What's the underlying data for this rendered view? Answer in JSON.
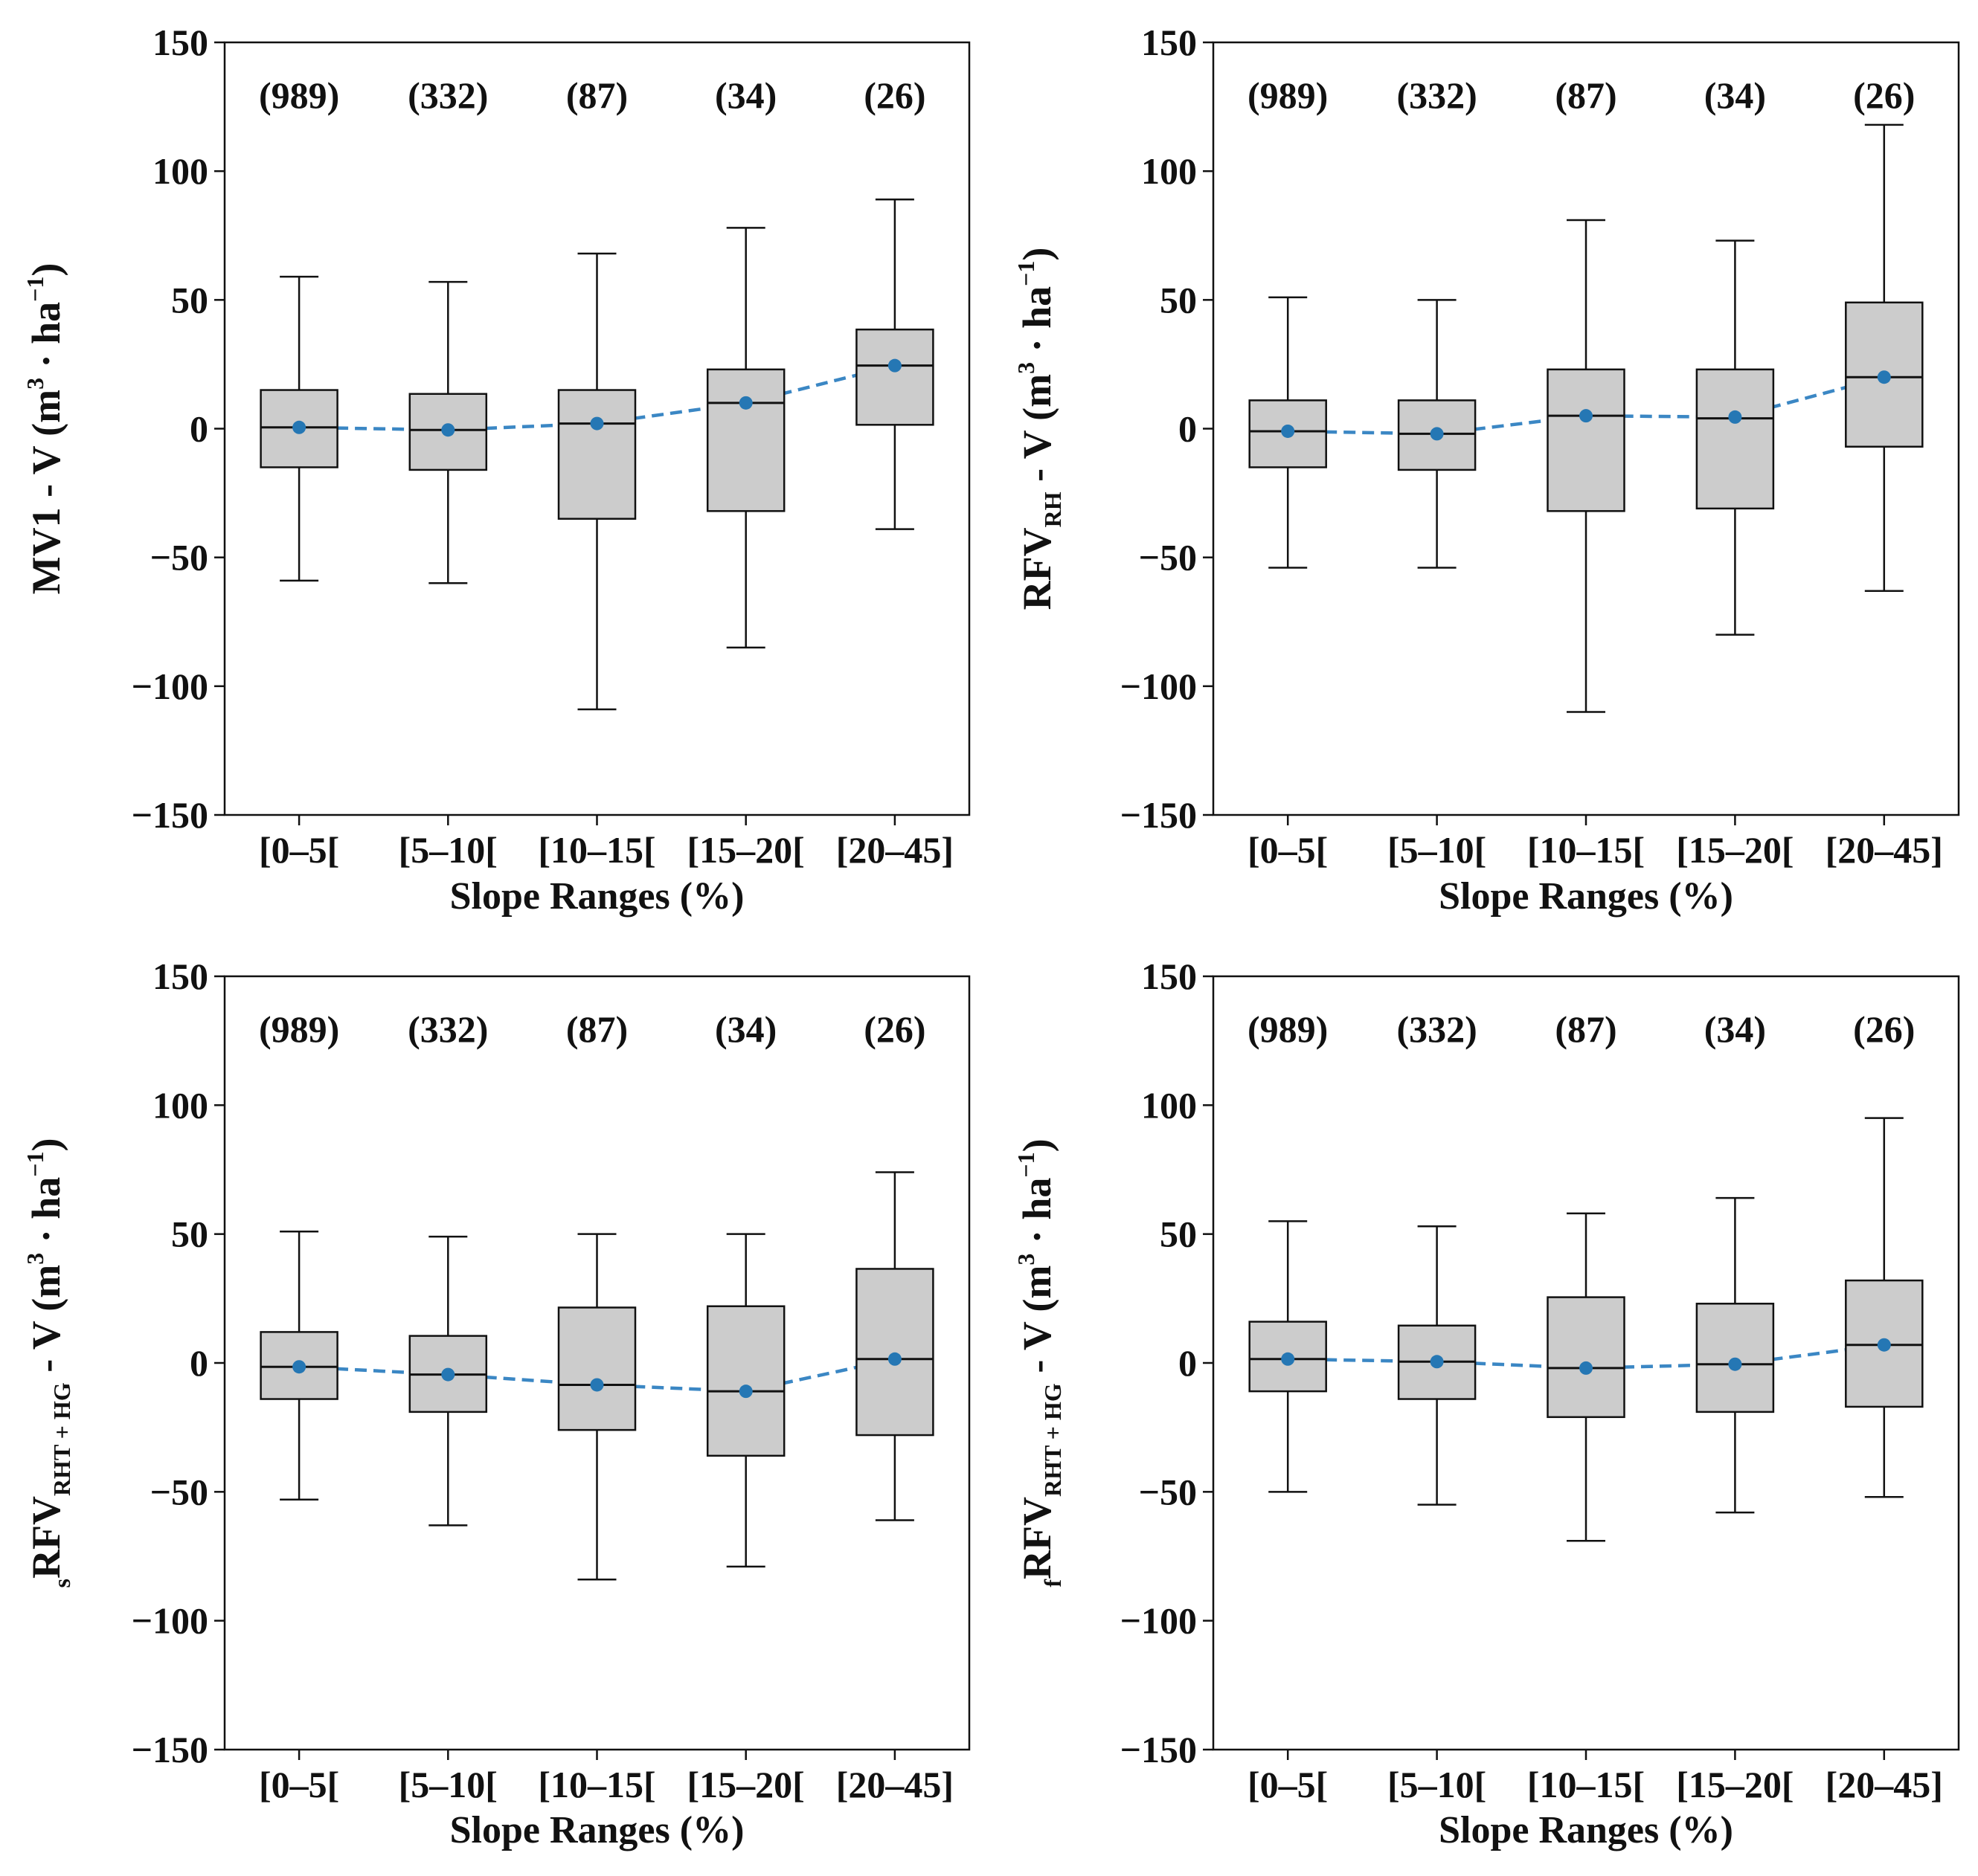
{
  "chart_data": [
    {
      "type": "box",
      "ylabel": {
        "pre": "",
        "main": "MV1",
        "sub": "",
        "mid": " - V (m",
        "sup1": "3",
        "mid2": " · ha",
        "sup2": "−1",
        "end": ")"
      },
      "xlabel": "Slope Ranges (%)",
      "categories": [
        "[0–5[",
        "[5–10[",
        "[10–15[",
        "[15–20[",
        "[20–45]"
      ],
      "counts": [
        "(989)",
        "(332)",
        "(87)",
        "(34)",
        "(26)"
      ],
      "ylim": [
        -150,
        150
      ],
      "yticks": [
        150,
        100,
        50,
        0,
        -50,
        -100,
        -150
      ],
      "ytick_labels": [
        "150",
        "100",
        "50",
        "0",
        "−50",
        "−100",
        "−150"
      ],
      "boxes": [
        {
          "whislo": -59,
          "q1": -15,
          "med": 0.5,
          "q3": 15,
          "whishi": 59,
          "mean": 0.5
        },
        {
          "whislo": -60,
          "q1": -16,
          "med": -0.5,
          "q3": 13.5,
          "whishi": 57,
          "mean": -0.5
        },
        {
          "whislo": -109,
          "q1": -35,
          "med": 2,
          "q3": 15,
          "whishi": 68,
          "mean": 2
        },
        {
          "whislo": -85,
          "q1": -32,
          "med": 10,
          "q3": 23,
          "whishi": 78,
          "mean": 10
        },
        {
          "whislo": -39,
          "q1": 1.5,
          "med": 24.5,
          "q3": 38.5,
          "whishi": 89,
          "mean": 24.5
        }
      ]
    },
    {
      "type": "box",
      "ylabel": {
        "pre": "",
        "main": "RFV",
        "sub": "RH",
        "mid": " - V (m",
        "sup1": "3",
        "mid2": " · ha",
        "sup2": "−1",
        "end": ")"
      },
      "xlabel": "Slope Ranges (%)",
      "categories": [
        "[0–5[",
        "[5–10[",
        "[10–15[",
        "[15–20[",
        "[20–45]"
      ],
      "counts": [
        "(989)",
        "(332)",
        "(87)",
        "(34)",
        "(26)"
      ],
      "ylim": [
        -150,
        150
      ],
      "yticks": [
        150,
        100,
        50,
        0,
        -50,
        -100,
        -150
      ],
      "ytick_labels": [
        "150",
        "100",
        "50",
        "0",
        "−50",
        "−100",
        "−150"
      ],
      "boxes": [
        {
          "whislo": -54,
          "q1": -15,
          "med": -1,
          "q3": 11,
          "whishi": 51,
          "mean": -1
        },
        {
          "whislo": -54,
          "q1": -16,
          "med": -2,
          "q3": 11,
          "whishi": 50,
          "mean": -2
        },
        {
          "whislo": -110,
          "q1": -32,
          "med": 5,
          "q3": 23,
          "whishi": 81,
          "mean": 5
        },
        {
          "whislo": -80,
          "q1": -31,
          "med": 4,
          "q3": 23,
          "whishi": 73,
          "mean": 4.5
        },
        {
          "whislo": -63,
          "q1": -7,
          "med": 20,
          "q3": 49,
          "whishi": 118,
          "mean": 20
        }
      ]
    },
    {
      "type": "box",
      "ylabel": {
        "pre": "s",
        "main": "RFV",
        "sub": "RHT + HG",
        "mid": " - V (m",
        "sup1": "3",
        "mid2": " · ha",
        "sup2": "−1",
        "end": ")"
      },
      "xlabel": "Slope Ranges (%)",
      "categories": [
        "[0–5[",
        "[5–10[",
        "[10–15[",
        "[15–20[",
        "[20–45]"
      ],
      "counts": [
        "(989)",
        "(332)",
        "(87)",
        "(34)",
        "(26)"
      ],
      "ylim": [
        -150,
        150
      ],
      "yticks": [
        150,
        100,
        50,
        0,
        -50,
        -100,
        -150
      ],
      "ytick_labels": [
        "150",
        "100",
        "50",
        "0",
        "−50",
        "−100",
        "−150"
      ],
      "boxes": [
        {
          "whislo": -53,
          "q1": -14,
          "med": -1.5,
          "q3": 12,
          "whishi": 51,
          "mean": -1.5
        },
        {
          "whislo": -63,
          "q1": -19,
          "med": -4.5,
          "q3": 10.5,
          "whishi": 49,
          "mean": -4.5
        },
        {
          "whislo": -84,
          "q1": -26,
          "med": -8.5,
          "q3": 21.5,
          "whishi": 50,
          "mean": -8.5
        },
        {
          "whislo": -79,
          "q1": -36,
          "med": -11,
          "q3": 22,
          "whishi": 50,
          "mean": -11
        },
        {
          "whislo": -61,
          "q1": -28,
          "med": 1.5,
          "q3": 36.5,
          "whishi": 74,
          "mean": 1.5
        }
      ]
    },
    {
      "type": "box",
      "ylabel": {
        "pre": "f",
        "main": "RFV",
        "sub": "RHT + HG",
        "mid": " - V (m",
        "sup1": "3",
        "mid2": " · ha",
        "sup2": "−1",
        "end": ")"
      },
      "xlabel": "Slope Ranges (%)",
      "categories": [
        "[0–5[",
        "[5–10[",
        "[10–15[",
        "[15–20[",
        "[20–45]"
      ],
      "counts": [
        "(989)",
        "(332)",
        "(87)",
        "(34)",
        "(26)"
      ],
      "ylim": [
        -150,
        150
      ],
      "yticks": [
        150,
        100,
        50,
        0,
        -50,
        -100,
        -150
      ],
      "ytick_labels": [
        "150",
        "100",
        "50",
        "0",
        "−50",
        "−100",
        "−150"
      ],
      "boxes": [
        {
          "whislo": -50,
          "q1": -11,
          "med": 1.5,
          "q3": 16,
          "whishi": 55,
          "mean": 1.5
        },
        {
          "whislo": -55,
          "q1": -14,
          "med": 0.5,
          "q3": 14.5,
          "whishi": 53,
          "mean": 0.5
        },
        {
          "whislo": -69,
          "q1": -21,
          "med": -2,
          "q3": 25.5,
          "whishi": 58,
          "mean": -2
        },
        {
          "whislo": -58,
          "q1": -19,
          "med": -0.5,
          "q3": 23,
          "whishi": 64,
          "mean": -0.5
        },
        {
          "whislo": -52,
          "q1": -17,
          "med": 7,
          "q3": 32,
          "whishi": 95,
          "mean": 7
        }
      ]
    }
  ],
  "colors": {
    "box_fill": "#cccccc",
    "box_edge": "#111111",
    "mean_line": "#3b87c4",
    "mean_marker": "#2577b4",
    "text": "#111111"
  }
}
